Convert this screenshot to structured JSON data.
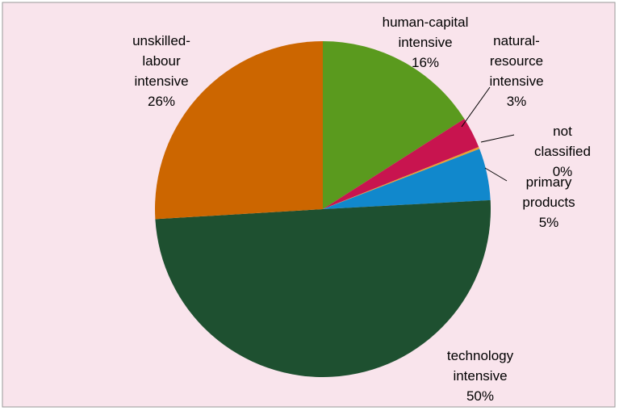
{
  "chart_data": {
    "type": "pie",
    "categories": [
      "human-capital\nintensive",
      "natural-\nresource\nintensive",
      "not classified",
      "primary\nproducts",
      "technology\nintensive",
      "unskilled-\nlabour\nintensive"
    ],
    "values": [
      16,
      3,
      0.2,
      5,
      50,
      26
    ],
    "value_labels": [
      "16%",
      "3%",
      "0%",
      "5%",
      "50%",
      "26%"
    ],
    "colors": [
      "#5a9a1e",
      "#c8144f",
      "#e8a030",
      "#1188cc",
      "#1e5030",
      "#cc6600"
    ]
  }
}
